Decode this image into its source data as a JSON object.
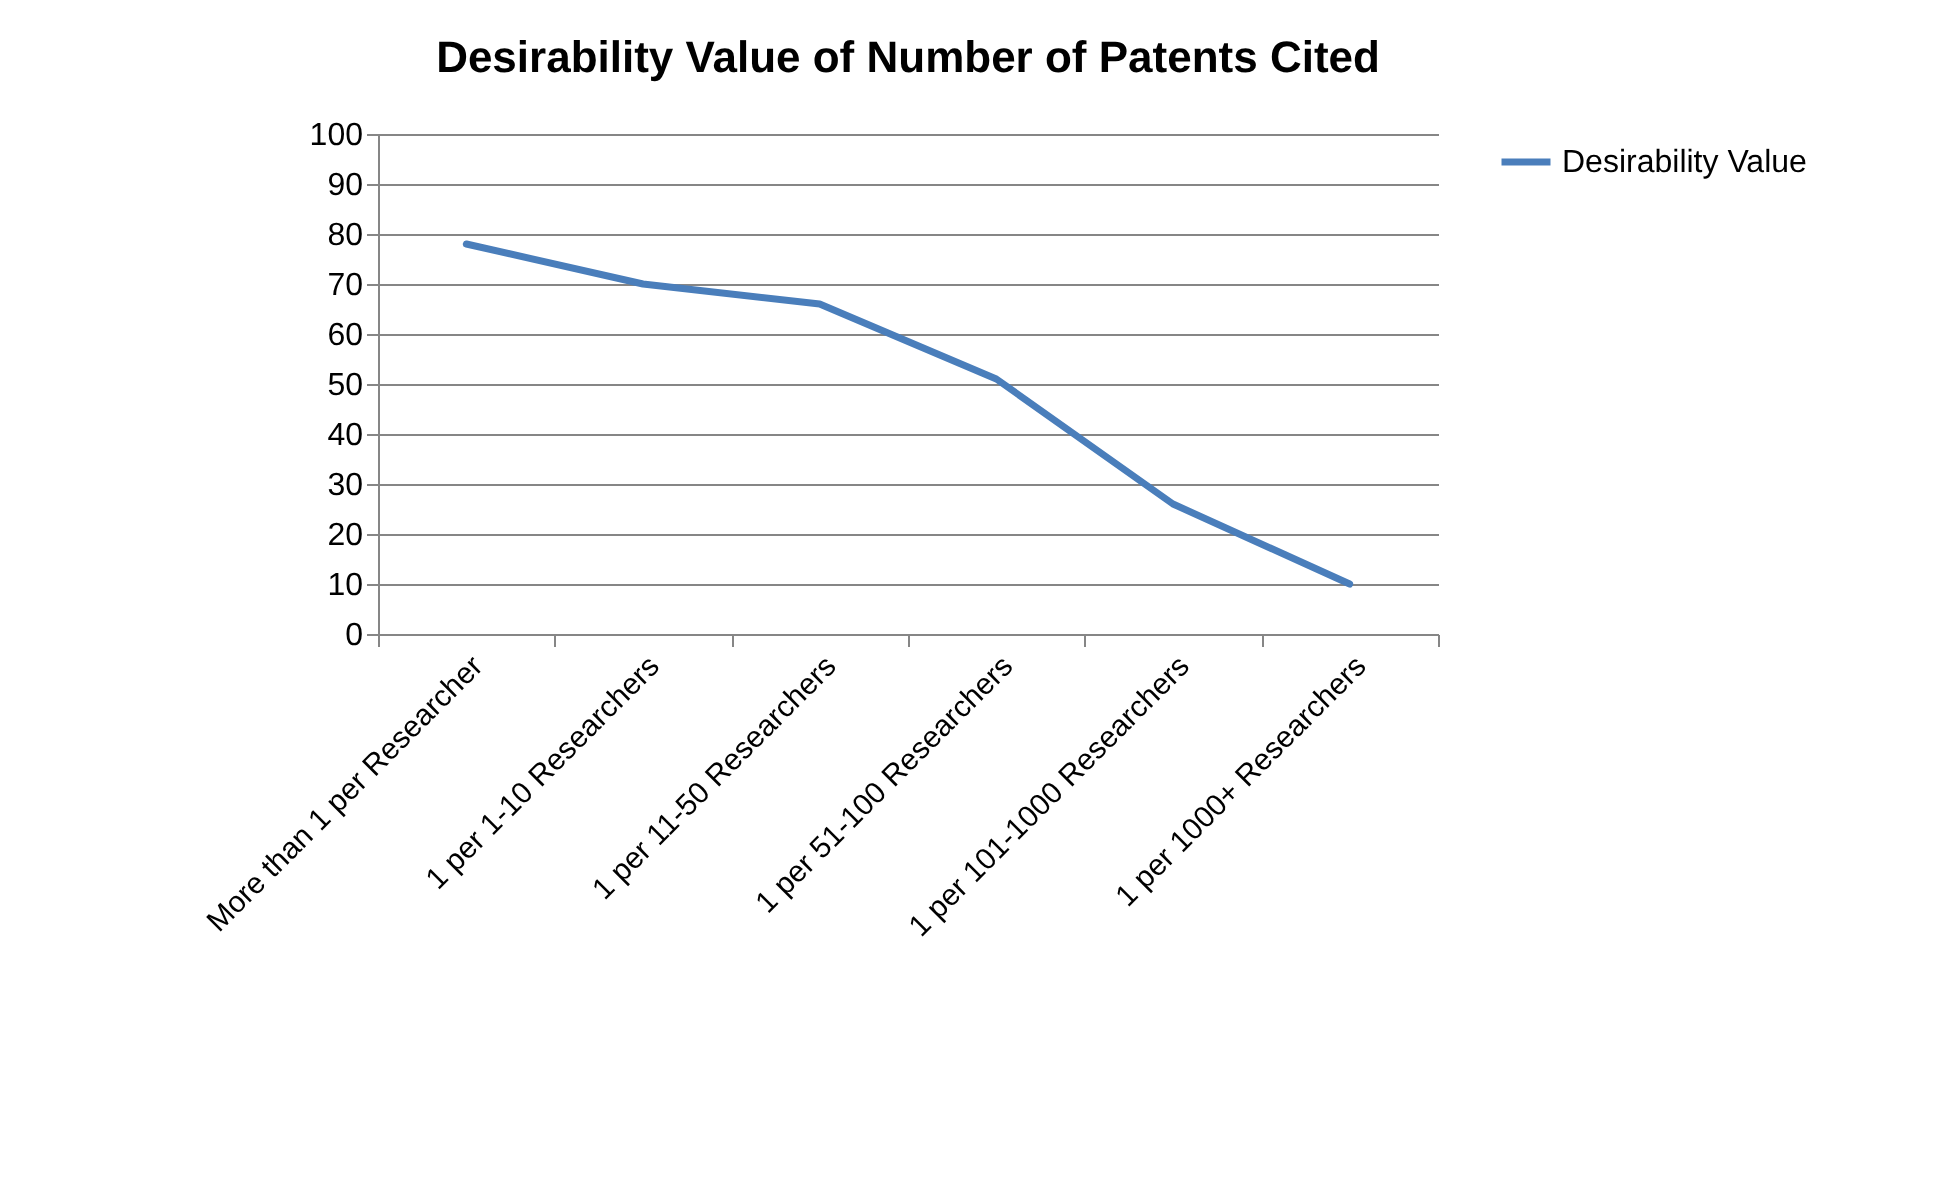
{
  "chart_data": {
    "type": "line",
    "title": "Desirability Value of Number of Patents Cited",
    "categories": [
      "More than 1 per Researcher",
      "1 per 1-10 Researchers",
      "1 per 11-50 Researchers",
      "1 per 51-100 Researchers",
      "1 per 101-1000 Researchers",
      "1 per 1000+ Researchers"
    ],
    "series": [
      {
        "name": "Desirability Value",
        "color": "#4a7ebb",
        "values": [
          78,
          70,
          66,
          51,
          26,
          10
        ]
      }
    ],
    "ylim": [
      0,
      100
    ],
    "yticks": [
      0,
      10,
      20,
      30,
      40,
      50,
      60,
      70,
      80,
      90,
      100
    ],
    "grid": "y",
    "legend": "right",
    "marker": "none",
    "line_style": "solid"
  }
}
